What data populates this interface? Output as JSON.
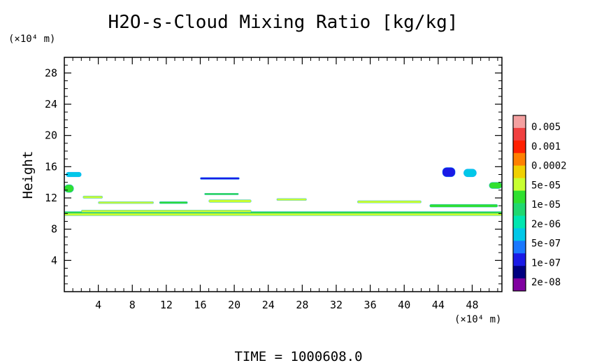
{
  "chart_data": {
    "type": "heatmap",
    "title": "H2O-s-Cloud Mixing Ratio [kg/kg]",
    "ylabel": "Height",
    "y_unit": "(×10⁴ m)",
    "x_unit": "(×10⁴ m)",
    "xlim": [
      0,
      51.5
    ],
    "ylim": [
      0,
      30
    ],
    "x_ticks": [
      4,
      8,
      12,
      16,
      20,
      24,
      28,
      32,
      36,
      40,
      44,
      48
    ],
    "y_ticks": [
      4,
      8,
      12,
      16,
      20,
      24,
      28
    ],
    "grid": false,
    "legend_position": "right",
    "colorbar": {
      "labels": [
        "0.005",
        "0.001",
        "0.0002",
        "5e-05",
        "1e-05",
        "2e-06",
        "5e-07",
        "1e-07",
        "2e-08"
      ],
      "colors_top_to_bottom": [
        "#f4a0a0",
        "#f04040",
        "#ff2000",
        "#ff8000",
        "#f0d000",
        "#c8ff30",
        "#30e030",
        "#20d870",
        "#00e6b0",
        "#00c8e8",
        "#1a78ff",
        "#1a1ae6",
        "#000080",
        "#8000a0"
      ]
    },
    "features": [
      {
        "x": [
          0.0,
          51.5
        ],
        "y": 9.9,
        "thickness": 0.35,
        "level": "5e-05"
      },
      {
        "x": [
          0.0,
          51.5
        ],
        "y": 10.15,
        "thickness": 0.2,
        "level": "1e-05"
      },
      {
        "x": [
          16.0,
          20.6
        ],
        "y": 14.5,
        "thickness": 0.25,
        "level": "1e-07"
      },
      {
        "x": [
          0.2,
          2.0
        ],
        "y": 15.0,
        "thickness": 0.6,
        "level": "5e-07"
      },
      {
        "x": [
          0.0,
          1.1
        ],
        "y": 13.2,
        "thickness": 1.0,
        "level": "1e-05"
      },
      {
        "x": [
          2.2,
          4.5
        ],
        "y": 12.1,
        "thickness": 0.3,
        "level": "5e-05"
      },
      {
        "x": [
          4.0,
          10.5
        ],
        "y": 11.4,
        "thickness": 0.25,
        "level": "5e-05"
      },
      {
        "x": [
          11.2,
          14.5
        ],
        "y": 11.4,
        "thickness": 0.25,
        "level": "1e-05"
      },
      {
        "x": [
          16.5,
          20.5
        ],
        "y": 12.5,
        "thickness": 0.2,
        "level": "1e-05"
      },
      {
        "x": [
          17.0,
          22.0
        ],
        "y": 11.6,
        "thickness": 0.35,
        "level": "5e-05"
      },
      {
        "x": [
          2.0,
          22.0
        ],
        "y": 10.3,
        "thickness": 0.3,
        "level": "5e-05"
      },
      {
        "x": [
          44.5,
          46.0
        ],
        "y": 15.3,
        "thickness": 1.2,
        "level": "1e-07"
      },
      {
        "x": [
          47.0,
          48.5
        ],
        "y": 15.2,
        "thickness": 1.0,
        "level": "5e-07"
      },
      {
        "x": [
          50.0,
          51.5
        ],
        "y": 13.6,
        "thickness": 0.8,
        "level": "1e-05"
      },
      {
        "x": [
          25.0,
          28.5
        ],
        "y": 11.8,
        "thickness": 0.25,
        "level": "5e-05"
      },
      {
        "x": [
          34.5,
          42.0
        ],
        "y": 11.5,
        "thickness": 0.3,
        "level": "5e-05"
      },
      {
        "x": [
          43.0,
          51.0
        ],
        "y": 11.0,
        "thickness": 0.35,
        "level": "1e-05"
      }
    ]
  },
  "footer": {
    "time_label": "TIME  =  1000608.0"
  }
}
